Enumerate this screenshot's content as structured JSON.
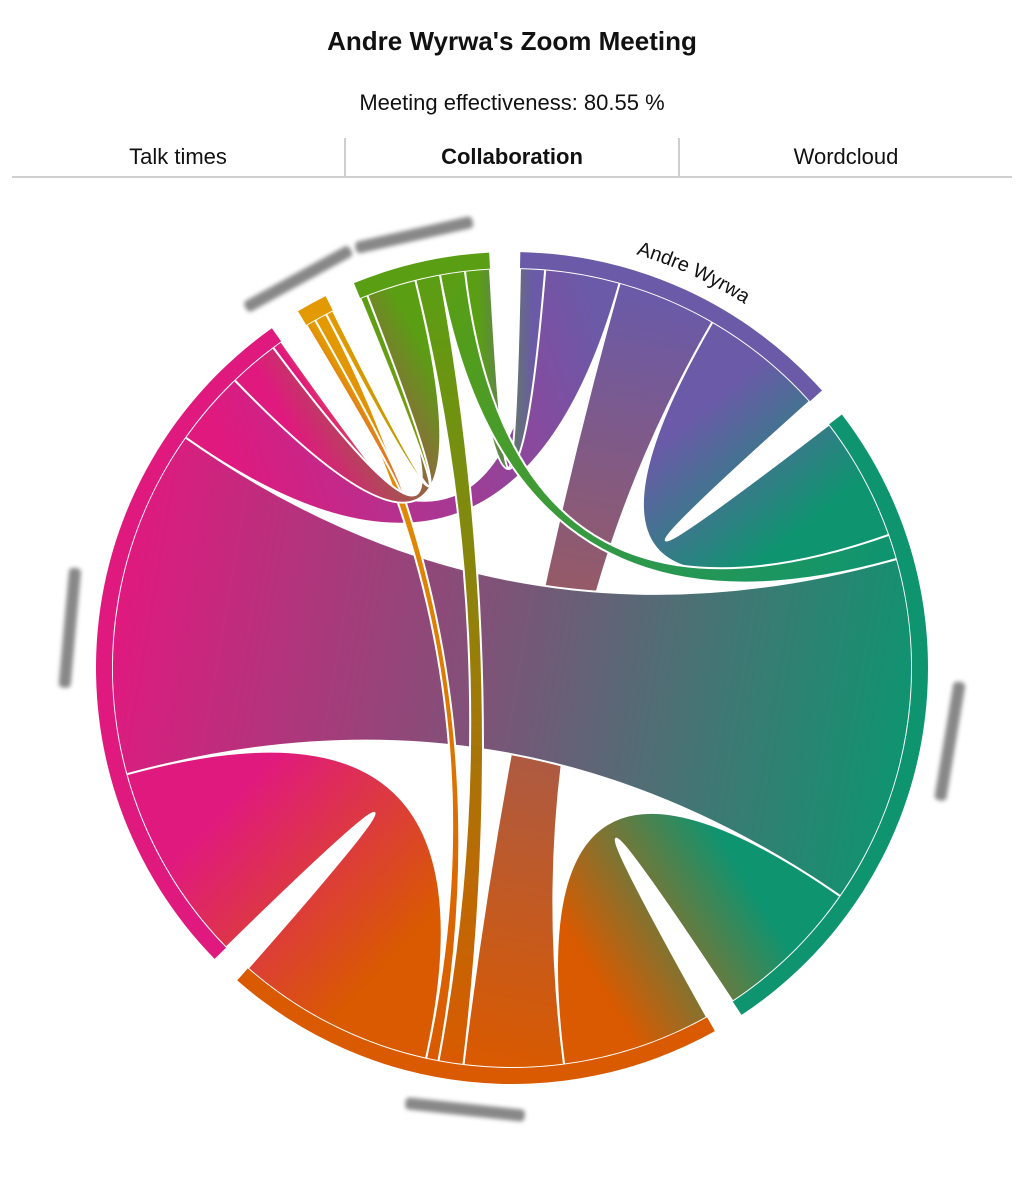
{
  "title": "Andre Wyrwa's Zoom Meeting",
  "effectiveness_text": "Meeting effectiveness: 80.55 %",
  "tabs": [
    {
      "label": "Talk times",
      "active": false
    },
    {
      "label": "Collaboration",
      "active": true
    },
    {
      "label": "Wordcloud",
      "active": false
    }
  ],
  "chart_data": {
    "type": "chord",
    "groups": [
      {
        "name": "Andre Wyrwa",
        "color": "#6a5aa8",
        "blurred": false
      },
      {
        "name": "",
        "color": "#0f9470",
        "blurred": true
      },
      {
        "name": "",
        "color": "#d95a00",
        "blurred": true
      },
      {
        "name": "",
        "color": "#e0197f",
        "blurred": true
      },
      {
        "name": "",
        "color": "#e39a00",
        "blurred": true
      },
      {
        "name": "",
        "color": "#5a9e14",
        "blurred": true
      }
    ],
    "ribbons": [
      {
        "source": 0,
        "target": 1,
        "value": 5
      },
      {
        "source": 0,
        "target": 2,
        "value": 4
      },
      {
        "source": 0,
        "target": 3,
        "value": 3
      },
      {
        "source": 0,
        "target": 5,
        "value": 1
      },
      {
        "source": 1,
        "target": 3,
        "value": 14
      },
      {
        "source": 1,
        "target": 5,
        "value": 1
      },
      {
        "source": 1,
        "target": 2,
        "value": 6
      },
      {
        "source": 2,
        "target": 3,
        "value": 8
      },
      {
        "source": 2,
        "target": 4,
        "value": 0.5
      },
      {
        "source": 2,
        "target": 5,
        "value": 1
      },
      {
        "source": 3,
        "target": 4,
        "value": 0.4
      },
      {
        "source": 3,
        "target": 5,
        "value": 2
      },
      {
        "source": 4,
        "target": 5,
        "value": 0.3
      }
    ]
  }
}
